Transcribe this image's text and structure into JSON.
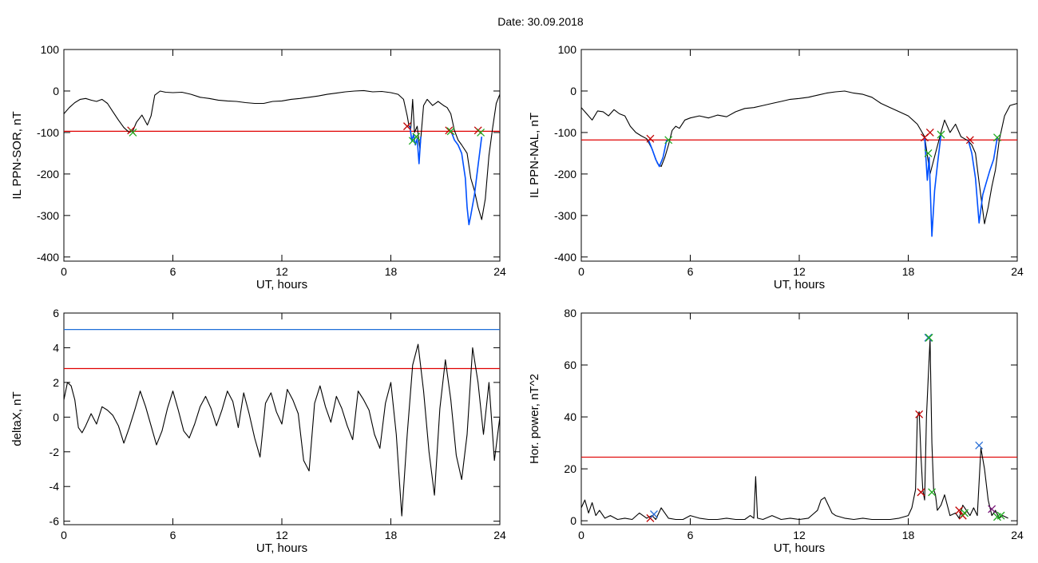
{
  "figure": {
    "title": "Date:  30.09.2018"
  },
  "colors": {
    "trace": "#000000",
    "event": "#0050ff",
    "threshold_red": "#e00000",
    "threshold_blue": "#1f6fd8",
    "marker_red": "#c00000",
    "marker_green": "#22aa22",
    "marker_blue": "#2a6fd6",
    "marker_purple": "#7a1a7a"
  },
  "chart_data": [
    {
      "id": "sor",
      "type": "line",
      "title": "",
      "xlabel": "UT, hours",
      "ylabel": "IL PPN-SOR, nT",
      "xlim": [
        0,
        24
      ],
      "ylim": [
        -410,
        100
      ],
      "xticks": [
        0,
        6,
        12,
        18,
        24
      ],
      "yticks": [
        -400,
        -300,
        -200,
        -100,
        0,
        100
      ],
      "thresholds": [
        {
          "value": -97,
          "color": "#e00000"
        }
      ],
      "series": [
        {
          "style": "trace",
          "x": [
            0,
            0.3,
            0.6,
            0.9,
            1.2,
            1.5,
            1.8,
            2.1,
            2.4,
            2.7,
            3.0,
            3.3,
            3.6,
            3.8,
            4.0,
            4.3,
            4.6,
            4.8,
            5.0,
            5.3,
            5.6,
            6.0,
            6.5,
            7.0,
            7.5,
            8.0,
            8.5,
            9.0,
            9.5,
            10.0,
            10.5,
            11.0,
            11.5,
            12.0,
            12.5,
            13.0,
            13.5,
            14.0,
            14.5,
            15.0,
            15.5,
            16.0,
            16.5,
            17.0,
            17.5,
            18.0,
            18.4,
            18.7,
            18.9,
            19.0,
            19.1,
            19.2,
            19.3,
            19.45,
            19.6,
            19.8,
            20.0,
            20.3,
            20.6,
            20.9,
            21.1,
            21.3,
            21.5,
            21.7,
            21.9,
            22.2,
            22.4,
            22.6,
            22.8,
            23.0,
            23.2,
            23.4,
            23.6,
            23.8,
            24.0
          ],
          "y": [
            -55,
            -40,
            -28,
            -20,
            -18,
            -22,
            -25,
            -20,
            -30,
            -50,
            -70,
            -88,
            -100,
            -96,
            -75,
            -58,
            -82,
            -60,
            -10,
            0,
            -3,
            -4,
            -3,
            -8,
            -15,
            -18,
            -22,
            -24,
            -25,
            -28,
            -30,
            -30,
            -25,
            -24,
            -20,
            -18,
            -15,
            -12,
            -8,
            -5,
            -2,
            0,
            1,
            -2,
            -1,
            -4,
            -8,
            -20,
            -60,
            -85,
            -90,
            -20,
            -100,
            -85,
            -140,
            -35,
            -20,
            -35,
            -25,
            -35,
            -40,
            -55,
            -95,
            -118,
            -130,
            -150,
            -210,
            -240,
            -280,
            -310,
            -260,
            -155,
            -90,
            -30,
            -8
          ]
        },
        {
          "style": "event",
          "x": [
            19.05,
            19.15,
            19.25,
            19.35,
            19.45,
            19.55,
            19.65
          ],
          "y": [
            -85,
            -120,
            -105,
            -130,
            -115,
            -175,
            -110
          ]
        },
        {
          "style": "event",
          "x": [
            21.3,
            21.5,
            21.7,
            21.9,
            22.1,
            22.2,
            22.3,
            22.4,
            22.6,
            22.8,
            23.0
          ],
          "y": [
            -95,
            -118,
            -130,
            -150,
            -210,
            -280,
            -322,
            -300,
            -250,
            -180,
            -110
          ]
        }
      ],
      "markers": [
        {
          "x": 3.7,
          "y": -95,
          "color": "#c00000"
        },
        {
          "x": 3.8,
          "y": -100,
          "color": "#22aa22"
        },
        {
          "x": 18.9,
          "y": -85,
          "color": "#c00000"
        },
        {
          "x": 19.2,
          "y": -120,
          "color": "#22aa22"
        },
        {
          "x": 19.4,
          "y": -110,
          "color": "#22aa22"
        },
        {
          "x": 21.2,
          "y": -95,
          "color": "#c00000"
        },
        {
          "x": 21.3,
          "y": -97,
          "color": "#22aa22"
        },
        {
          "x": 22.8,
          "y": -95,
          "color": "#c00000"
        },
        {
          "x": 22.95,
          "y": -100,
          "color": "#22aa22"
        }
      ]
    },
    {
      "id": "nal",
      "type": "line",
      "title": "",
      "xlabel": "UT, hours",
      "ylabel": "IL PPN-NAL, nT",
      "xlim": [
        0,
        24
      ],
      "ylim": [
        -410,
        100
      ],
      "xticks": [
        0,
        6,
        12,
        18,
        24
      ],
      "yticks": [
        -400,
        -300,
        -200,
        -100,
        0,
        100
      ],
      "thresholds": [
        {
          "value": -118,
          "color": "#e00000"
        }
      ],
      "series": [
        {
          "style": "trace",
          "x": [
            0,
            0.3,
            0.6,
            0.9,
            1.2,
            1.5,
            1.8,
            2.1,
            2.4,
            2.7,
            3.0,
            3.3,
            3.6,
            3.9,
            4.2,
            4.4,
            4.6,
            4.8,
            5.0,
            5.2,
            5.4,
            5.7,
            6.0,
            6.5,
            7.0,
            7.5,
            8.0,
            8.5,
            9.0,
            9.5,
            10.0,
            10.5,
            11.0,
            11.5,
            12.0,
            12.5,
            13.0,
            13.5,
            14.0,
            14.5,
            15.0,
            15.5,
            16.0,
            16.5,
            17.0,
            17.5,
            18.0,
            18.5,
            18.9,
            19.2,
            19.5,
            19.8,
            20.0,
            20.3,
            20.6,
            20.9,
            21.1,
            21.3,
            21.5,
            21.7,
            21.9,
            22.2,
            22.4,
            22.6,
            22.8,
            23.0,
            23.3,
            23.6,
            24.0
          ],
          "y": [
            -40,
            -55,
            -70,
            -48,
            -50,
            -60,
            -45,
            -55,
            -60,
            -85,
            -100,
            -108,
            -115,
            -140,
            -175,
            -182,
            -160,
            -130,
            -95,
            -85,
            -90,
            -70,
            -65,
            -60,
            -65,
            -58,
            -62,
            -50,
            -42,
            -40,
            -35,
            -30,
            -25,
            -20,
            -18,
            -15,
            -10,
            -5,
            -2,
            0,
            -5,
            -8,
            -15,
            -30,
            -40,
            -50,
            -60,
            -80,
            -110,
            -200,
            -150,
            -100,
            -70,
            -100,
            -80,
            -110,
            -115,
            -120,
            -130,
            -150,
            -220,
            -320,
            -280,
            -230,
            -190,
            -120,
            -60,
            -35,
            -30
          ]
        },
        {
          "style": "event",
          "x": [
            3.7,
            3.9,
            4.1,
            4.3,
            4.5,
            4.7
          ],
          "y": [
            -118,
            -140,
            -165,
            -182,
            -160,
            -118
          ]
        },
        {
          "style": "event",
          "x": [
            18.9,
            19.05,
            19.15,
            19.3,
            19.45,
            19.6,
            19.8
          ],
          "y": [
            -112,
            -215,
            -160,
            -350,
            -240,
            -180,
            -105
          ]
        },
        {
          "style": "event",
          "x": [
            21.3,
            21.5,
            21.7,
            21.9,
            22.1,
            22.3,
            22.5,
            22.7,
            22.9
          ],
          "y": [
            -118,
            -150,
            -210,
            -318,
            -250,
            -220,
            -190,
            -165,
            -112
          ]
        }
      ],
      "markers": [
        {
          "x": 3.8,
          "y": -115,
          "color": "#c00000"
        },
        {
          "x": 4.8,
          "y": -118,
          "color": "#22aa22"
        },
        {
          "x": 18.9,
          "y": -112,
          "color": "#c00000"
        },
        {
          "x": 19.2,
          "y": -100,
          "color": "#c00000"
        },
        {
          "x": 19.1,
          "y": -150,
          "color": "#22aa22"
        },
        {
          "x": 19.8,
          "y": -105,
          "color": "#22aa22"
        },
        {
          "x": 21.4,
          "y": -118,
          "color": "#c00000"
        },
        {
          "x": 22.9,
          "y": -112,
          "color": "#22aa22"
        }
      ]
    },
    {
      "id": "deltax",
      "type": "line",
      "title": "",
      "xlabel": "UT, hours",
      "ylabel": "deltaX, nT",
      "xlim": [
        0,
        24
      ],
      "ylim": [
        -6.2,
        6
      ],
      "xticks": [
        0,
        6,
        12,
        18,
        24
      ],
      "yticks": [
        -6,
        -4,
        -2,
        0,
        2,
        4,
        6
      ],
      "thresholds": [
        {
          "value": 5.05,
          "color": "#1f6fd8"
        },
        {
          "value": 2.8,
          "color": "#e00000"
        }
      ],
      "series": [
        {
          "style": "trace",
          "x": [
            0,
            0.2,
            0.4,
            0.6,
            0.8,
            1.0,
            1.2,
            1.5,
            1.8,
            2.1,
            2.4,
            2.7,
            3.0,
            3.3,
            3.6,
            3.9,
            4.2,
            4.5,
            4.8,
            5.1,
            5.4,
            5.7,
            6.0,
            6.3,
            6.6,
            6.9,
            7.2,
            7.5,
            7.8,
            8.1,
            8.4,
            8.7,
            9.0,
            9.3,
            9.6,
            9.9,
            10.2,
            10.5,
            10.8,
            11.1,
            11.4,
            11.7,
            12.0,
            12.3,
            12.6,
            12.9,
            13.2,
            13.5,
            13.8,
            14.1,
            14.4,
            14.7,
            15.0,
            15.3,
            15.6,
            15.9,
            16.2,
            16.5,
            16.8,
            17.1,
            17.4,
            17.7,
            18.0,
            18.3,
            18.6,
            18.9,
            19.2,
            19.5,
            19.8,
            20.1,
            20.4,
            20.7,
            21.0,
            21.3,
            21.6,
            21.9,
            22.2,
            22.5,
            22.8,
            23.1,
            23.4,
            23.7,
            24.0
          ],
          "y": [
            1.0,
            2.0,
            1.8,
            1.0,
            -0.6,
            -0.9,
            -0.5,
            0.2,
            -0.4,
            0.6,
            0.4,
            0.1,
            -0.5,
            -1.5,
            -0.6,
            0.4,
            1.5,
            0.6,
            -0.5,
            -1.6,
            -0.8,
            0.5,
            1.5,
            0.4,
            -0.8,
            -1.2,
            -0.4,
            0.6,
            1.2,
            0.5,
            -0.5,
            0.4,
            1.5,
            0.9,
            -0.6,
            1.4,
            0.2,
            -1.2,
            -2.3,
            0.8,
            1.4,
            0.3,
            -0.4,
            1.6,
            1.0,
            0.2,
            -2.5,
            -3.1,
            0.8,
            1.8,
            0.6,
            -0.3,
            1.2,
            0.5,
            -0.5,
            -1.3,
            1.5,
            1.0,
            0.4,
            -1.0,
            -1.8,
            0.8,
            2.0,
            -1.0,
            -5.7,
            -1.0,
            3.0,
            4.2,
            1.5,
            -2.0,
            -4.5,
            0.5,
            3.3,
            1.0,
            -2.2,
            -3.6,
            -1.0,
            4.0,
            2.0,
            -1.0,
            2.0,
            -2.5,
            0.0
          ]
        }
      ],
      "markers": []
    },
    {
      "id": "power",
      "type": "line",
      "title": "",
      "xlabel": "UT, hours",
      "ylabel": "Hor. power, nT^2",
      "xlim": [
        0,
        24
      ],
      "ylim": [
        -1.5,
        80
      ],
      "xticks": [
        0,
        6,
        12,
        18,
        24
      ],
      "yticks": [
        0,
        20,
        40,
        60,
        80
      ],
      "thresholds": [
        {
          "value": 24.5,
          "color": "#e00000"
        }
      ],
      "series": [
        {
          "style": "trace",
          "x": [
            0,
            0.2,
            0.4,
            0.6,
            0.8,
            1.0,
            1.3,
            1.6,
            2.0,
            2.4,
            2.8,
            3.2,
            3.6,
            3.9,
            4.1,
            4.4,
            4.8,
            5.2,
            5.6,
            6.0,
            6.5,
            7.0,
            7.5,
            8.0,
            8.5,
            9.0,
            9.3,
            9.5,
            9.6,
            9.7,
            10.0,
            10.5,
            11.0,
            11.5,
            12.0,
            12.5,
            13.0,
            13.2,
            13.4,
            13.6,
            13.8,
            14.0,
            14.5,
            15.0,
            15.5,
            16.0,
            16.5,
            17.0,
            17.5,
            18.0,
            18.2,
            18.4,
            18.5,
            18.6,
            18.7,
            18.8,
            18.9,
            19.0,
            19.1,
            19.2,
            19.3,
            19.4,
            19.5,
            19.6,
            19.8,
            20.0,
            20.3,
            20.6,
            20.8,
            21.0,
            21.2,
            21.4,
            21.6,
            21.8,
            22.0,
            22.2,
            22.4,
            22.6,
            22.8,
            23.0,
            23.2,
            23.5
          ],
          "y": [
            5,
            8,
            3,
            7,
            2,
            4,
            1,
            2,
            0.5,
            1,
            0.5,
            3,
            1,
            2,
            0.5,
            5,
            1,
            0.5,
            0.5,
            2,
            1,
            0.5,
            0.5,
            1,
            0.5,
            0.5,
            2,
            1,
            17,
            1,
            0.5,
            2,
            0.5,
            1,
            0.5,
            1,
            4,
            8,
            9,
            6,
            3,
            2,
            1,
            0.5,
            1,
            0.5,
            0.5,
            0.5,
            1,
            2,
            5,
            12,
            40,
            42,
            25,
            12,
            8,
            40,
            55,
            70,
            30,
            12,
            10,
            4,
            6,
            10,
            2,
            3,
            1,
            6,
            4,
            2,
            5,
            2,
            28,
            20,
            8,
            2,
            4,
            1,
            2,
            1
          ]
        }
      ],
      "markers": [
        {
          "x": 3.8,
          "y": 1.0,
          "color": "#c00000"
        },
        {
          "x": 4.0,
          "y": 2.5,
          "color": "#2a6fd6"
        },
        {
          "x": 18.6,
          "y": 41,
          "color": "#c00000"
        },
        {
          "x": 18.7,
          "y": 11,
          "color": "#c00000"
        },
        {
          "x": 19.1,
          "y": 70.5,
          "color": "#2a6fd6"
        },
        {
          "x": 19.15,
          "y": 70.5,
          "color": "#22aa22"
        },
        {
          "x": 19.3,
          "y": 11,
          "color": "#22aa22"
        },
        {
          "x": 20.8,
          "y": 4,
          "color": "#c00000"
        },
        {
          "x": 21.0,
          "y": 2,
          "color": "#c00000"
        },
        {
          "x": 21.1,
          "y": 3,
          "color": "#22aa22"
        },
        {
          "x": 21.9,
          "y": 29,
          "color": "#2a6fd6"
        },
        {
          "x": 22.6,
          "y": 4.5,
          "color": "#7a1a7a"
        },
        {
          "x": 22.9,
          "y": 1.5,
          "color": "#22aa22"
        },
        {
          "x": 23.1,
          "y": 2,
          "color": "#22aa22"
        }
      ]
    }
  ]
}
